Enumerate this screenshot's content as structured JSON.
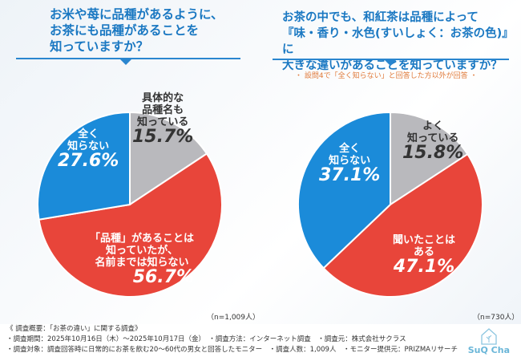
{
  "chart_data": [
    {
      "type": "pie",
      "title": "お米や苺に品種があるように、お茶にも品種があることを知っていますか？",
      "title_lines": [
        "お米や苺に品種があるように、",
        "お茶にも品種があることを",
        "知っていますか？"
      ],
      "n": "（n=1,009人）",
      "slices": [
        {
          "label": "具体的な品種名も知っている",
          "lines": [
            "具体的な",
            "品種名も",
            "知っている"
          ],
          "value": 15.7,
          "display": "15.7%",
          "color": "#b9b9bd"
        },
        {
          "label": "「品種」があることは知っていたが、名前までは知らない",
          "lines": [
            "「品種」があることは",
            "知っていたが、",
            "名前までは知らない"
          ],
          "value": 56.7,
          "display": "56.7%",
          "color": "#e8453a"
        },
        {
          "label": "全く知らない",
          "lines": [
            "全く",
            "知らない"
          ],
          "value": 27.6,
          "display": "27.6%",
          "color": "#1b8bd9"
        }
      ]
    },
    {
      "type": "pie",
      "title": "お茶の中でも、和紅茶は品種によって『味・香り・水色(すいしょく：お茶の色)』に大きな違いがあることを知っていますか？",
      "title_lines": [
        "お茶の中でも、和紅茶は品種によって",
        "『味・香り・水色(すいしょく：お茶の色)』に",
        "大きな違いがあることを知っていますか？"
      ],
      "note": "・ 設問4で「全く知らない」と回答した方以外が回答 ・",
      "n": "（n=730人）",
      "slices": [
        {
          "label": "よく知っている",
          "lines": [
            "よく",
            "知っている"
          ],
          "value": 15.8,
          "display": "15.8%",
          "color": "#b9b9bd"
        },
        {
          "label": "聞いたことはある",
          "lines": [
            "聞いたことは",
            "ある"
          ],
          "value": 47.1,
          "display": "47.1%",
          "color": "#e8453a"
        },
        {
          "label": "全く知らない",
          "lines": [
            "全く",
            "知らない"
          ],
          "value": 37.1,
          "display": "37.1%",
          "color": "#1b8bd9"
        }
      ]
    }
  ],
  "footer": {
    "line1": "《 調査概要：「お茶の違い」に関する調査》",
    "line2": "・調査期間：2025年10月16日（木）～2025年10月17日（金）　・調査方法：インターネット調査　・調査元：株式会社サクラス",
    "line3": "・調査対象：調査回答時に日常的にお茶を飲む20～60代の男女と回答したモニター　・調査人数：1,009人　・モニター提供元：PRIZMAリサーチ"
  },
  "logo": {
    "text": "SuQ Cha"
  }
}
